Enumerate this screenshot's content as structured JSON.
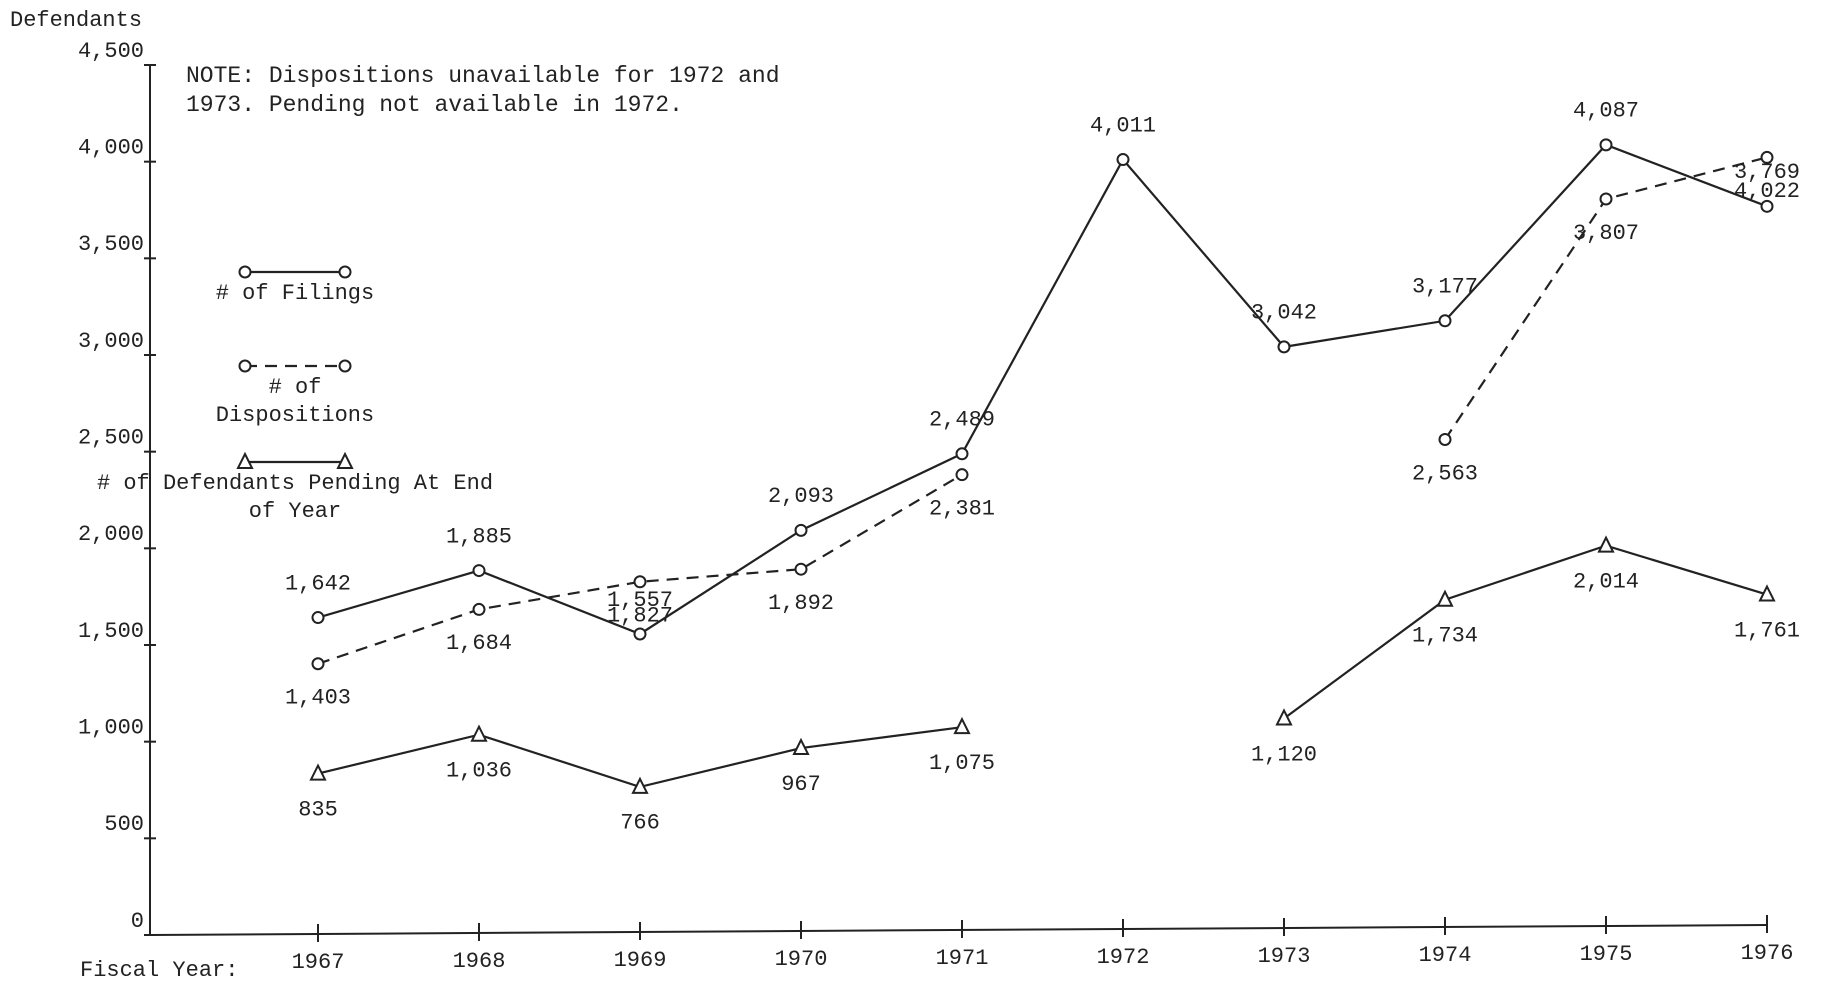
{
  "chart_data": {
    "type": "line",
    "y_label": "Defendants",
    "x_label": "Fiscal Year:",
    "note": "NOTE: Dispositions unavailable for 1972 and 1973. Pending not available in 1972.",
    "categories": [
      "1967",
      "1968",
      "1969",
      "1970",
      "1971",
      "1972",
      "1973",
      "1974",
      "1975",
      "1976"
    ],
    "series": [
      {
        "name": "# of Filings",
        "color": "#222222",
        "line_style": "solid",
        "marker": "circle",
        "values": [
          1642,
          1885,
          1557,
          2093,
          2489,
          4011,
          3042,
          3177,
          4087,
          3769
        ],
        "value_labels": [
          "1,642",
          "1,885",
          "1,557",
          "2,093",
          "2,489",
          "4,011",
          "3,042",
          "3,177",
          "4,087",
          "3,769"
        ]
      },
      {
        "name": "# of Dispositions",
        "color": "#222222",
        "line_style": "dashed",
        "marker": "circle",
        "values": [
          1403,
          1684,
          1827,
          1892,
          2381,
          null,
          null,
          2563,
          3807,
          4022
        ],
        "value_labels": [
          "1,403",
          "1,684",
          "1,827",
          "1,892",
          "2,381",
          null,
          null,
          "2,563",
          "3,807",
          "4,022"
        ]
      },
      {
        "name": "# of Defendants Pending At End of Year",
        "color": "#222222",
        "line_style": "solid",
        "marker": "triangle",
        "values": [
          835,
          1036,
          766,
          967,
          1075,
          null,
          1120,
          1734,
          2014,
          1761
        ],
        "value_labels": [
          "835",
          "1,036",
          "766",
          "967",
          "1,075",
          null,
          "1,120",
          "1,734",
          "2,014",
          "1,761"
        ]
      }
    ],
    "ylim": [
      0,
      4500
    ],
    "yticks": [
      0,
      500,
      {
        "value": 1000,
        "label": "1,000"
      },
      {
        "value": 1500,
        "label": "1,500"
      },
      {
        "value": 2000,
        "label": "2,000"
      },
      {
        "value": 2500,
        "label": "2,500"
      },
      {
        "value": 3000,
        "label": "3,000"
      },
      {
        "value": 3500,
        "label": "3,500"
      },
      {
        "value": 4000,
        "label": "4,000"
      },
      {
        "value": 4500,
        "label": "4,500"
      }
    ]
  }
}
